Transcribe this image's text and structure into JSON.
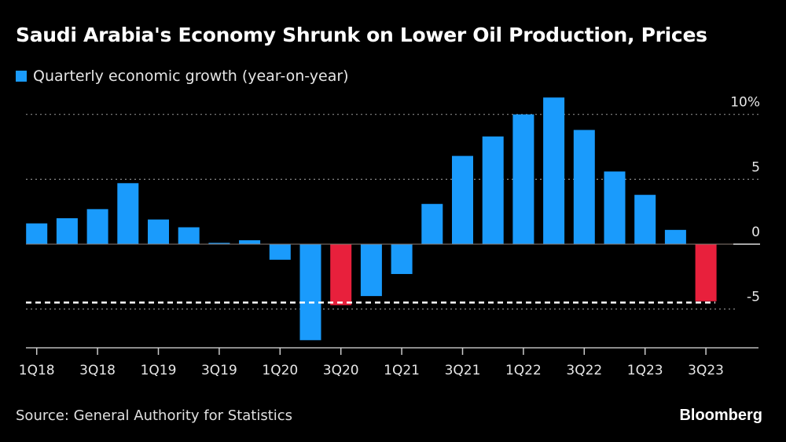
{
  "title": "Saudi Arabia's Economy Shrunk on Lower Oil Production, Prices",
  "legend": {
    "label": "Quarterly economic growth (year-on-year)",
    "color": "#1a9bfc"
  },
  "source": "Source: General Authority for Statistics",
  "brand": "Bloomberg",
  "chart_data": {
    "type": "bar",
    "title": "Saudi Arabia's Economy Shrunk on Lower Oil Production, Prices",
    "series": [
      {
        "name": "Quarterly economic growth (year-on-year)",
        "values": [
          1.6,
          2.0,
          2.7,
          4.7,
          1.9,
          1.3,
          0.1,
          0.3,
          -1.2,
          -7.4,
          -4.7,
          -4.0,
          -2.3,
          3.1,
          6.8,
          8.3,
          10.0,
          11.3,
          8.8,
          5.6,
          3.8,
          1.1,
          -4.4
        ]
      }
    ],
    "categories": [
      "1Q18",
      "2Q18",
      "3Q18",
      "4Q18",
      "1Q19",
      "2Q19",
      "3Q19",
      "4Q19",
      "1Q20",
      "2Q20",
      "3Q20",
      "4Q20",
      "1Q21",
      "2Q21",
      "3Q21",
      "4Q21",
      "1Q22",
      "2Q22",
      "3Q22",
      "4Q22",
      "1Q23",
      "2Q23",
      "3Q23"
    ],
    "x_tick_labels": [
      "1Q18",
      "3Q18",
      "1Q19",
      "3Q19",
      "1Q20",
      "3Q20",
      "1Q21",
      "3Q21",
      "1Q22",
      "3Q22",
      "1Q23",
      "3Q23"
    ],
    "y_ticks": [
      10,
      5,
      0,
      -5
    ],
    "y_tick_labels": [
      "10%",
      "5",
      "0",
      "-5"
    ],
    "ylim": [
      -8,
      12
    ],
    "highlighted_categories": [
      "3Q20",
      "3Q23"
    ],
    "reference_line": {
      "value": -4.5,
      "style": "dashed"
    },
    "colors": {
      "bar": "#1a9bfc",
      "highlight": "#e8203c",
      "reference": "#ffffff",
      "grid": "#888888"
    },
    "grid": true,
    "legend_position": "top-left",
    "xlabel": "",
    "ylabel": ""
  }
}
